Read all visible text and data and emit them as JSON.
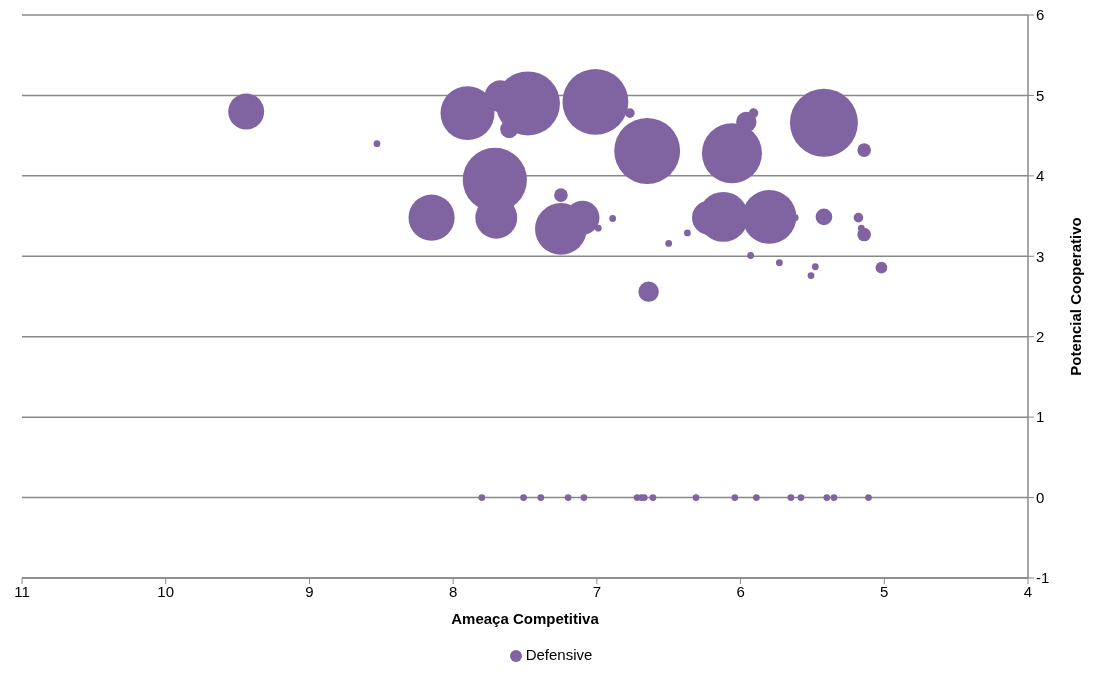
{
  "chart_data": {
    "type": "bubble",
    "xlabel": "Ameaça Competitiva",
    "ylabel": "Potencial Cooperativo",
    "xlim": [
      11,
      4
    ],
    "xticks": [
      11,
      10,
      9,
      8,
      7,
      6,
      5,
      4
    ],
    "ylim": [
      -1,
      6
    ],
    "yticks": [
      -1,
      0,
      1,
      2,
      3,
      4,
      5,
      6
    ],
    "grid": "y",
    "legend": "bottom",
    "series": [
      {
        "name": "Defensive",
        "color": "#8064a2",
        "x": [
          9.44,
          8.53,
          7.9,
          7.67,
          7.48,
          7.61,
          7.01,
          6.77,
          6.65,
          7.71,
          7.7,
          8.15,
          7.25,
          7.25,
          7.1,
          6.99,
          6.89,
          6.5,
          6.37,
          6.64,
          6.06,
          5.96,
          5.91,
          5.42,
          5.14,
          6.22,
          6.12,
          5.8,
          5.62,
          5.42,
          5.18,
          5.16,
          5.14,
          5.93,
          5.73,
          5.48,
          5.51,
          5.02,
          7.8,
          7.51,
          7.39,
          7.2,
          7.09,
          6.72,
          6.69,
          6.67,
          6.61,
          6.31,
          6.04,
          5.89,
          5.65,
          5.58,
          5.4,
          5.35,
          5.11
        ],
        "values": [
          4.8,
          4.4,
          4.78,
          4.99,
          4.9,
          4.58,
          4.92,
          4.78,
          4.31,
          3.95,
          3.48,
          3.48,
          3.34,
          3.76,
          3.48,
          3.35,
          3.47,
          3.16,
          3.29,
          2.56,
          4.28,
          4.67,
          4.78,
          4.66,
          4.32,
          3.48,
          3.49,
          3.49,
          3.48,
          3.49,
          3.48,
          3.35,
          3.27,
          3.01,
          2.92,
          2.87,
          2.76,
          2.86,
          0,
          0,
          0,
          0,
          0,
          0,
          0,
          0,
          0,
          0,
          0,
          0,
          0,
          0,
          0,
          0,
          0
        ],
        "sizes": [
          0.28,
          0.01,
          0.63,
          0.22,
          0.89,
          0.07,
          0.94,
          0.02,
          0.94,
          0.89,
          0.38,
          0.46,
          0.58,
          0.04,
          0.25,
          0.01,
          0.01,
          0.01,
          0.01,
          0.09,
          0.78,
          0.09,
          0.02,
          1,
          0.04,
          0.25,
          0.54,
          0.63,
          0.01,
          0.06,
          0.02,
          0.01,
          0.04,
          0.01,
          0.01,
          0.01,
          0.01,
          0.03,
          0.01,
          0.01,
          0.01,
          0.01,
          0.01,
          0.01,
          0.01,
          0.01,
          0.01,
          0.01,
          0.01,
          0.01,
          0.01,
          0.01,
          0.01,
          0.01,
          0.01
        ]
      }
    ]
  }
}
